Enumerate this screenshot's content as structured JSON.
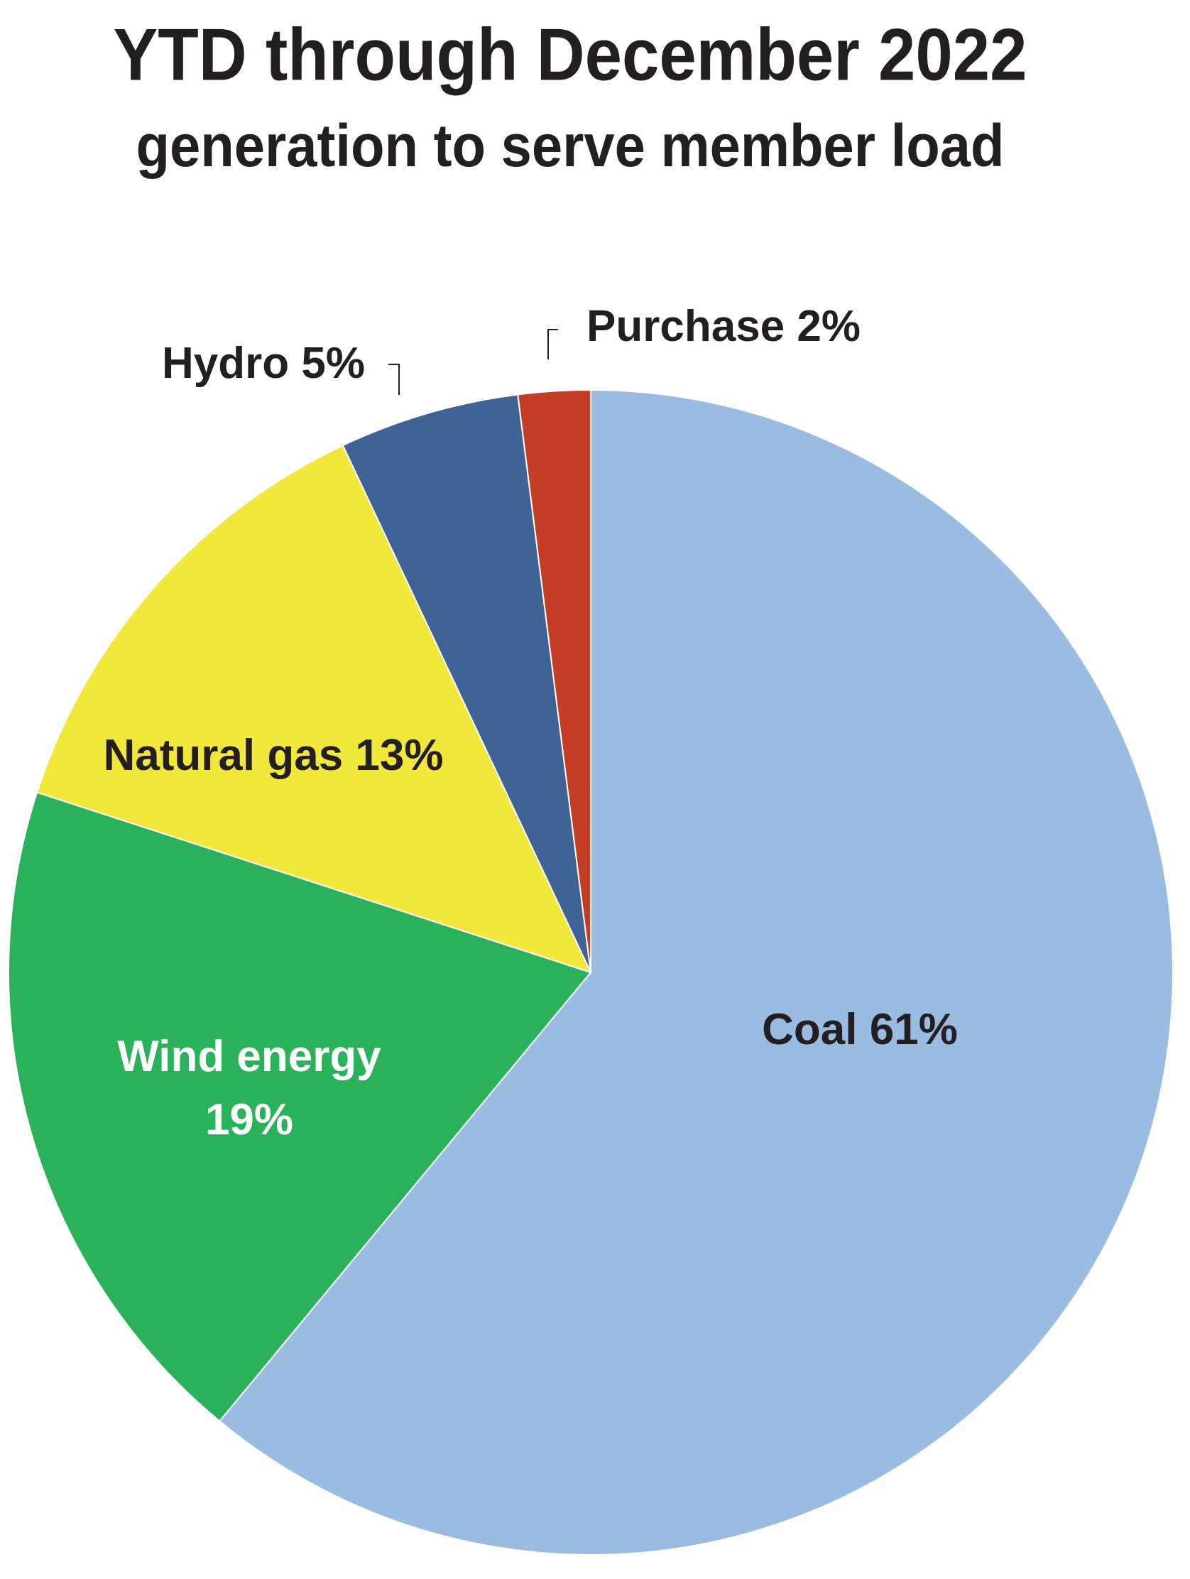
{
  "chart_data": {
    "type": "pie",
    "title": "YTD through December 2022",
    "subtitle": "generation to serve member load",
    "categories": [
      "Coal",
      "Wind energy",
      "Natural gas",
      "Hydro",
      "Purchase"
    ],
    "values": [
      61,
      19,
      13,
      5,
      2
    ],
    "value_labels": [
      "61%",
      "19%",
      "13%",
      "5%",
      "2%"
    ],
    "colors": [
      "#9abbe2",
      "#2bb15a",
      "#f2e83c",
      "#3f6395",
      "#c43e27"
    ]
  }
}
